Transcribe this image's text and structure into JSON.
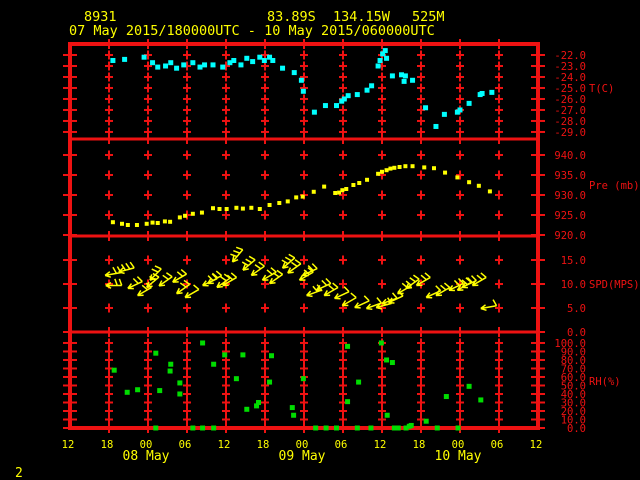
{
  "colors": {
    "background": "#000000",
    "grid_red": "#ee1212",
    "temperature_cyan": "#00ffff",
    "pressure_yellow": "#ffff00",
    "wind_yellow": "#ffff00",
    "humidity_green": "#00dd00",
    "header_yellow": "#ffff00"
  },
  "header": {
    "station_id": "8931",
    "latitude": "83.89S",
    "longitude": "134.15W",
    "elevation": "525M",
    "time_range": "07 May 2015/180000UTC - 10 May 2015/060000UTC"
  },
  "page_number": "2",
  "x_axis": {
    "hours_range": [
      0,
      72
    ],
    "hour_labels": [
      "12",
      "18",
      "00",
      "06",
      "12",
      "18",
      "00",
      "06",
      "12",
      "18",
      "00",
      "06",
      "12"
    ],
    "date_labels": [
      "08 May",
      "09 May",
      "10 May"
    ],
    "date_label_gridline_index": [
      2,
      6,
      10
    ]
  },
  "chart_data": [
    {
      "name": "temperature",
      "type": "scatter",
      "unit_label": "T(C)",
      "unit_label_y": -25,
      "ylim": [
        -21.0,
        -29.64
      ],
      "ytick_vals": [
        -22,
        -23,
        -24,
        -25,
        -26,
        -27,
        -28,
        -29
      ],
      "ytick_labels": [
        "-22.0",
        "-23.0",
        "-24.0",
        "-25.0",
        "-26.0",
        "-27.0",
        "-28.0",
        "-29.0"
      ],
      "points": [
        [
          6.6,
          -22.5
        ],
        [
          8.4,
          -22.4
        ],
        [
          11.4,
          -22.2
        ],
        [
          12.7,
          -22.7
        ],
        [
          13.5,
          -23.1
        ],
        [
          14.7,
          -23.0
        ],
        [
          15.5,
          -22.7
        ],
        [
          16.4,
          -23.2
        ],
        [
          17.5,
          -22.9
        ],
        [
          18.9,
          -22.7
        ],
        [
          20.0,
          -23.1
        ],
        [
          20.7,
          -22.9
        ],
        [
          22.0,
          -22.9
        ],
        [
          23.5,
          -23.1
        ],
        [
          24.6,
          -22.7
        ],
        [
          25.2,
          -22.5
        ],
        [
          26.3,
          -22.9
        ],
        [
          27.2,
          -22.3
        ],
        [
          28.1,
          -22.6
        ],
        [
          29.2,
          -22.2
        ],
        [
          29.9,
          -22.5
        ],
        [
          30.7,
          -22.2
        ],
        [
          31.2,
          -22.5
        ],
        [
          32.7,
          -23.2
        ],
        [
          34.5,
          -23.6
        ],
        [
          35.6,
          -24.3
        ],
        [
          35.9,
          -25.3
        ],
        [
          37.6,
          -27.2
        ],
        [
          39.3,
          -26.6
        ],
        [
          41.0,
          -26.6
        ],
        [
          41.8,
          -26.2
        ],
        [
          42.2,
          -26.0
        ],
        [
          42.8,
          -25.7
        ],
        [
          44.2,
          -25.6
        ],
        [
          45.7,
          -25.2
        ],
        [
          46.4,
          -24.8
        ],
        [
          47.4,
          -23.0
        ],
        [
          47.7,
          -22.5
        ],
        [
          48.1,
          -21.9
        ],
        [
          48.5,
          -21.6
        ],
        [
          48.7,
          -22.3
        ],
        [
          49.6,
          -23.9
        ],
        [
          51.0,
          -23.8
        ],
        [
          51.4,
          -24.4
        ],
        [
          51.6,
          -23.9
        ],
        [
          52.7,
          -24.3
        ],
        [
          54.7,
          -26.8
        ],
        [
          56.3,
          -28.5
        ],
        [
          57.6,
          -27.4
        ],
        [
          59.6,
          -27.2
        ],
        [
          60.0,
          -27.0
        ],
        [
          61.4,
          -26.4
        ],
        [
          63.1,
          -25.6
        ],
        [
          63.4,
          -25.5
        ],
        [
          64.9,
          -25.4
        ]
      ]
    },
    {
      "name": "pressure",
      "type": "scatter",
      "unit_label": "Pre (mb)",
      "unit_label_y": 932.5,
      "ylim": [
        944.0,
        919.75
      ],
      "ytick_vals": [
        940,
        935,
        930,
        925,
        920
      ],
      "ytick_labels": [
        "940.0",
        "935.0",
        "930.0",
        "925.0",
        "920.0"
      ],
      "points": [
        [
          6.6,
          923.2
        ],
        [
          8.0,
          922.8
        ],
        [
          8.9,
          922.5
        ],
        [
          10.3,
          922.5
        ],
        [
          11.8,
          922.8
        ],
        [
          12.7,
          923.1
        ],
        [
          13.5,
          923.0
        ],
        [
          14.6,
          923.4
        ],
        [
          15.4,
          923.3
        ],
        [
          16.9,
          924.4
        ],
        [
          17.7,
          924.8
        ],
        [
          18.9,
          925.3
        ],
        [
          20.3,
          925.6
        ],
        [
          22.0,
          926.7
        ],
        [
          23.0,
          926.5
        ],
        [
          24.1,
          926.5
        ],
        [
          25.6,
          926.8
        ],
        [
          26.6,
          926.6
        ],
        [
          27.9,
          926.8
        ],
        [
          29.2,
          926.5
        ],
        [
          30.7,
          927.5
        ],
        [
          32.2,
          928.0
        ],
        [
          33.5,
          928.4
        ],
        [
          34.8,
          929.4
        ],
        [
          35.8,
          929.6
        ],
        [
          37.5,
          930.8
        ],
        [
          39.1,
          932.1
        ],
        [
          40.8,
          930.5
        ],
        [
          41.4,
          930.6
        ],
        [
          41.9,
          931.2
        ],
        [
          42.5,
          931.5
        ],
        [
          43.6,
          932.5
        ],
        [
          44.5,
          933.0
        ],
        [
          45.7,
          933.8
        ],
        [
          47.4,
          935.3
        ],
        [
          48.0,
          935.8
        ],
        [
          48.7,
          936.2
        ],
        [
          49.3,
          936.6
        ],
        [
          49.9,
          936.8
        ],
        [
          50.7,
          937.0
        ],
        [
          51.6,
          937.2
        ],
        [
          52.7,
          937.2
        ],
        [
          54.5,
          936.9
        ],
        [
          56.0,
          936.7
        ],
        [
          57.7,
          935.6
        ],
        [
          59.6,
          934.4
        ],
        [
          61.4,
          933.2
        ],
        [
          62.9,
          932.3
        ],
        [
          64.6,
          930.9
        ]
      ]
    },
    {
      "name": "wind_speed",
      "type": "windbarb",
      "unit_label": "SPD(MPS)",
      "unit_label_y": 10,
      "ylim": [
        20.0,
        0.0
      ],
      "ytick_vals": [
        15,
        10,
        5,
        0
      ],
      "ytick_labels": [
        "15.0",
        "10.0",
        "5.0",
        "0.0"
      ],
      "points": [
        [
          5.4,
          11.8,
          10
        ],
        [
          5.5,
          9.7,
          0
        ],
        [
          7.5,
          12.5,
          15
        ],
        [
          8.9,
          9.1,
          25
        ],
        [
          10.4,
          7.6,
          30
        ],
        [
          11.8,
          9.3,
          40
        ],
        [
          12.3,
          10.8,
          45
        ],
        [
          13.7,
          9.6,
          35
        ],
        [
          15.8,
          10.4,
          30
        ],
        [
          16.4,
          8.0,
          35
        ],
        [
          17.7,
          7.2,
          30
        ],
        [
          20.4,
          9.7,
          25
        ],
        [
          21.2,
          10.1,
          30
        ],
        [
          22.6,
          9.3,
          35
        ],
        [
          23.5,
          9.7,
          30
        ],
        [
          25.0,
          14.6,
          50
        ],
        [
          26.6,
          12.9,
          40
        ],
        [
          27.9,
          11.8,
          35
        ],
        [
          29.6,
          10.8,
          30
        ],
        [
          30.7,
          10.1,
          35
        ],
        [
          32.7,
          13.3,
          40
        ],
        [
          33.5,
          12.3,
          35
        ],
        [
          35.3,
          10.8,
          30
        ],
        [
          35.8,
          11.8,
          25
        ],
        [
          36.4,
          7.6,
          20
        ],
        [
          37.9,
          8.7,
          25
        ],
        [
          39.1,
          7.6,
          30
        ],
        [
          40.7,
          7.0,
          25
        ],
        [
          41.9,
          5.5,
          30
        ],
        [
          43.8,
          5.1,
          25
        ],
        [
          45.6,
          4.9,
          20
        ],
        [
          47.1,
          5.1,
          15
        ],
        [
          48.0,
          5.9,
          20
        ],
        [
          49.0,
          6.1,
          25
        ],
        [
          50.4,
          8.0,
          30
        ],
        [
          51.7,
          9.1,
          35
        ],
        [
          53.3,
          9.7,
          30
        ],
        [
          54.8,
          7.2,
          25
        ],
        [
          56.3,
          7.6,
          30
        ],
        [
          58.3,
          8.7,
          25
        ],
        [
          59.6,
          8.7,
          30
        ],
        [
          60.3,
          9.3,
          25
        ],
        [
          61.9,
          9.7,
          30
        ],
        [
          63.2,
          4.9,
          10
        ]
      ]
    },
    {
      "name": "relative_humidity",
      "type": "scatter",
      "unit_label": "RH(%)",
      "unit_label_y": 55,
      "ylim": [
        112.9,
        0.0
      ],
      "ytick_vals": [
        100,
        90,
        80,
        70,
        60,
        50,
        40,
        30,
        20,
        10,
        0
      ],
      "ytick_labels": [
        "100.0",
        "90.0",
        "80.0",
        "70.0",
        "60.0",
        "50.0",
        "40.0",
        "30.0",
        "20.0",
        "10.0",
        "0.0"
      ],
      "points": [
        [
          6.8,
          68
        ],
        [
          8.8,
          42
        ],
        [
          10.4,
          45
        ],
        [
          13.2,
          88
        ],
        [
          13.2,
          0
        ],
        [
          13.8,
          44
        ],
        [
          15.4,
          67
        ],
        [
          15.5,
          75
        ],
        [
          16.9,
          53
        ],
        [
          16.9,
          40
        ],
        [
          18.9,
          0
        ],
        [
          20.4,
          100
        ],
        [
          20.4,
          0
        ],
        [
          22.1,
          75
        ],
        [
          22.1,
          0
        ],
        [
          23.8,
          86
        ],
        [
          25.6,
          58
        ],
        [
          26.6,
          86
        ],
        [
          27.2,
          22
        ],
        [
          28.7,
          26
        ],
        [
          29.0,
          30
        ],
        [
          30.7,
          54
        ],
        [
          31.0,
          85
        ],
        [
          34.2,
          24
        ],
        [
          34.4,
          15
        ],
        [
          35.9,
          58
        ],
        [
          37.8,
          0
        ],
        [
          39.4,
          0
        ],
        [
          41.0,
          0
        ],
        [
          42.7,
          96
        ],
        [
          42.7,
          31
        ],
        [
          44.2,
          0
        ],
        [
          44.4,
          54
        ],
        [
          46.3,
          0
        ],
        [
          47.9,
          100
        ],
        [
          48.7,
          80
        ],
        [
          48.8,
          15
        ],
        [
          49.6,
          77
        ],
        [
          49.9,
          0
        ],
        [
          50.5,
          0
        ],
        [
          51.7,
          0
        ],
        [
          52.2,
          2
        ],
        [
          52.5,
          3
        ],
        [
          54.8,
          8
        ],
        [
          56.5,
          0
        ],
        [
          57.9,
          37
        ],
        [
          59.7,
          0
        ],
        [
          61.4,
          49
        ],
        [
          63.2,
          33
        ]
      ]
    }
  ]
}
